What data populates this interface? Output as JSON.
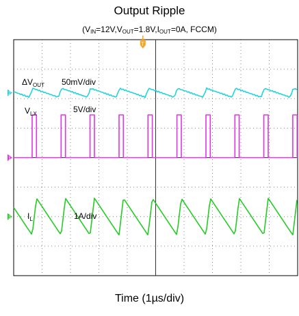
{
  "title": "Output Ripple",
  "subtitle": {
    "parts": [
      {
        "t": "(V",
        "sub": false
      },
      {
        "t": "IN",
        "sub": true
      },
      {
        "t": "=12V,V",
        "sub": false
      },
      {
        "t": "OUT",
        "sub": true
      },
      {
        "t": "=1.8V,I",
        "sub": false
      },
      {
        "t": "OUT",
        "sub": true
      },
      {
        "t": "=0A, FCCM)",
        "sub": false
      }
    ]
  },
  "xlabel": "Time (1µs/div)",
  "colors": {
    "vout": "#22d3dd",
    "vlx": "#e233e2",
    "il": "#22cc22",
    "trigger": "#f5a623",
    "grid": "#555555",
    "frame": "#000000"
  },
  "trigger_label": "T",
  "chart_data": {
    "type": "line",
    "title": "Output Ripple",
    "subtitle": "(VIN=12V,VOUT=1.8V,IOUT=0A, FCCM)",
    "xlabel": "Time (1µs/div)",
    "x_divisions": 10,
    "y_divisions": 8,
    "grid": true,
    "switching_period_div": 1.02,
    "series": [
      {
        "key": "vout",
        "name_main": "ΔV",
        "name_sub": "OUT",
        "scale": "50mV/div",
        "channel": "2",
        "baseline_div": 6.2,
        "peak_to_peak_div": 0.3,
        "shape": "sawtooth"
      },
      {
        "key": "vlx",
        "name_main": "V",
        "name_sub": "LX",
        "scale": "5V/div",
        "channel": "1",
        "low_div": 4.0,
        "high_div": 5.45,
        "duty": 0.15,
        "shape": "pulse"
      },
      {
        "key": "il",
        "name_main": "I",
        "name_sub": "L",
        "scale": "1A/div",
        "channel": "3",
        "baseline_div": 2.0,
        "peak_to_peak_div": 1.25,
        "shape": "triangle"
      }
    ]
  }
}
